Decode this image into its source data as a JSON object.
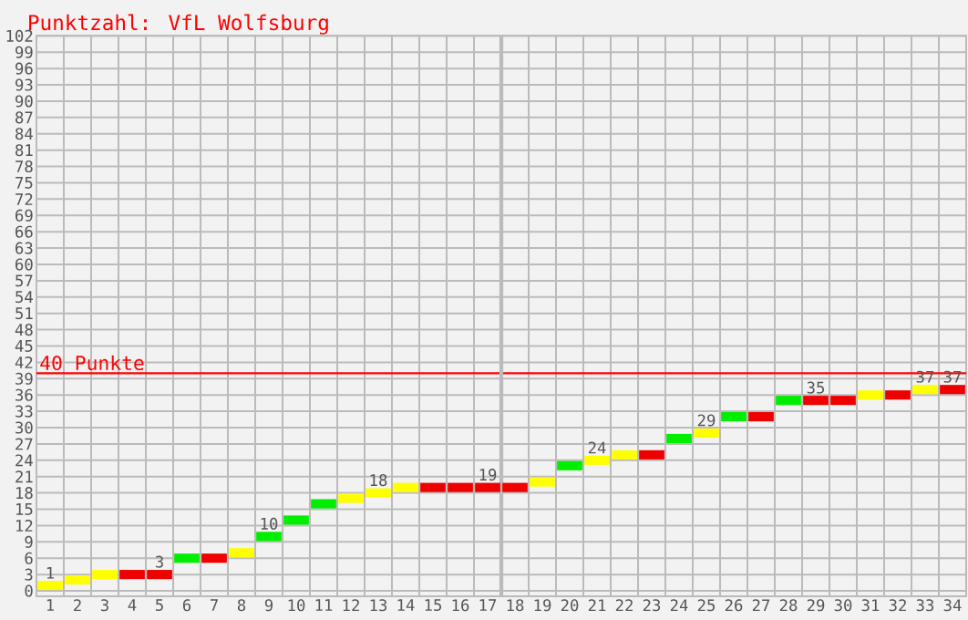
{
  "chart_data": {
    "type": "scatter",
    "title": "Punktzahl: VfL Wolfsburg",
    "x": [
      1,
      2,
      3,
      4,
      5,
      6,
      7,
      8,
      9,
      10,
      11,
      12,
      13,
      14,
      15,
      16,
      17,
      18,
      19,
      20,
      21,
      22,
      23,
      24,
      25,
      26,
      27,
      28,
      29,
      30,
      31,
      32,
      33,
      34
    ],
    "values": [
      1,
      2,
      3,
      3,
      3,
      6,
      6,
      7,
      10,
      13,
      16,
      17,
      18,
      19,
      19,
      19,
      19,
      19,
      20,
      23,
      24,
      25,
      25,
      28,
      29,
      32,
      32,
      35,
      35,
      35,
      36,
      36,
      37,
      37
    ],
    "colors": [
      "#ffff00",
      "#ffff00",
      "#ffff00",
      "#ee0000",
      "#ee0000",
      "#00ee00",
      "#ee0000",
      "#ffff00",
      "#00ee00",
      "#00ee00",
      "#00ee00",
      "#ffff00",
      "#ffff00",
      "#ffff00",
      "#ee0000",
      "#ee0000",
      "#ee0000",
      "#ee0000",
      "#ffff00",
      "#00ee00",
      "#ffff00",
      "#ffff00",
      "#ee0000",
      "#00ee00",
      "#ffff00",
      "#00ee00",
      "#ee0000",
      "#00ee00",
      "#ee0000",
      "#ee0000",
      "#ffff00",
      "#ee0000",
      "#ffff00",
      "#ee0000"
    ],
    "value_labels": [
      "1",
      null,
      null,
      null,
      "3",
      null,
      null,
      null,
      "10",
      null,
      null,
      null,
      "18",
      null,
      null,
      null,
      "19",
      null,
      null,
      null,
      "24",
      null,
      null,
      null,
      "29",
      null,
      null,
      null,
      "35",
      null,
      null,
      null,
      "37",
      "37"
    ],
    "marker": "square",
    "xlim": [
      0.5,
      34.5
    ],
    "xticks": [
      1,
      2,
      3,
      4,
      5,
      6,
      7,
      8,
      9,
      10,
      11,
      12,
      13,
      14,
      15,
      16,
      17,
      18,
      19,
      20,
      21,
      22,
      23,
      24,
      25,
      26,
      27,
      28,
      29,
      30,
      31,
      32,
      33,
      34
    ],
    "ylim": [
      -1,
      102
    ],
    "yticks": [
      0,
      3,
      6,
      9,
      12,
      15,
      18,
      21,
      24,
      27,
      30,
      33,
      36,
      39,
      42,
      45,
      48,
      51,
      54,
      57,
      60,
      63,
      66,
      69,
      72,
      75,
      78,
      81,
      84,
      87,
      90,
      93,
      96,
      99,
      102
    ],
    "grid": true,
    "ref_lines": [
      {
        "axis": "y",
        "value": 40,
        "label": "40 Punkte",
        "color": "#ff0000"
      },
      {
        "axis": "x",
        "value": 17.5,
        "color": "#bbbbbb"
      }
    ]
  }
}
